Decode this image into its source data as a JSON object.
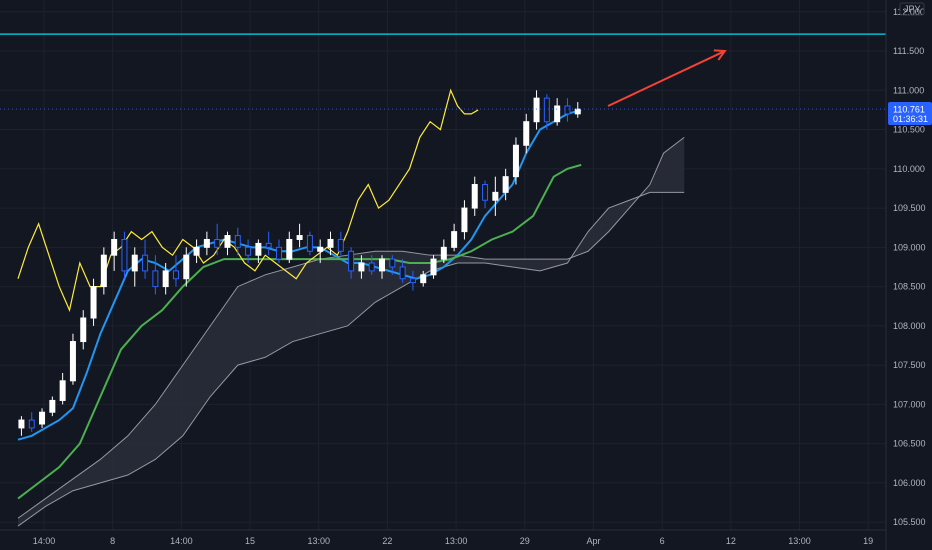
{
  "chart_data": {
    "type": "candlestick",
    "currency_label": "JPY",
    "y_ticks": [
      "112.000",
      "111.500",
      "111.000",
      "110.500",
      "110.000",
      "109.500",
      "109.000",
      "108.500",
      "108.000",
      "107.500",
      "107.000",
      "106.500",
      "106.000",
      "105.500"
    ],
    "ylim": [
      105.4,
      112.15
    ],
    "x_ticks": [
      {
        "label": "14:00",
        "x": 0
      },
      {
        "label": "8",
        "x": 1
      },
      {
        "label": "14:00",
        "x": 2
      },
      {
        "label": "15",
        "x": 3
      },
      {
        "label": "13:00",
        "x": 4
      },
      {
        "label": "22",
        "x": 5
      },
      {
        "label": "13:00",
        "x": 6
      },
      {
        "label": "29",
        "x": 7
      },
      {
        "label": "Apr",
        "x": 8
      },
      {
        "label": "6",
        "x": 9
      },
      {
        "label": "12",
        "x": 10
      },
      {
        "label": "13:00",
        "x": 11
      },
      {
        "label": "19",
        "x": 12
      }
    ],
    "horizontal_line": {
      "value": 111.715,
      "label": "111.715",
      "color": "#00bcd4"
    },
    "last_price": {
      "value": 110.761,
      "label": "110.761",
      "countdown": "01:36:31",
      "color": "#2962ff"
    },
    "colors": {
      "background": "#131722",
      "candle_up": "#ffffff",
      "candle_down": "#2962ff",
      "tenkan": "#2196f3",
      "kijun": "#4caf50",
      "chikou": "#ffeb3b",
      "cloud_line": "#9598a1",
      "cloud_fill": "#2a2e39",
      "arrow": "#f44336"
    },
    "series": [
      {
        "name": "tenkan",
        "x": [
          0,
          0.2,
          0.4,
          0.6,
          0.8,
          1,
          1.2,
          1.4,
          1.6,
          1.8,
          2,
          2.2,
          2.4,
          2.6,
          2.8,
          3,
          3.2,
          3.4,
          3.6,
          3.8,
          4,
          4.2,
          4.4,
          4.6,
          4.8,
          5,
          5.2,
          5.4,
          5.6,
          5.8,
          6,
          6.2,
          6.4,
          6.6,
          6.8,
          7,
          7.2,
          7.4,
          7.6,
          7.8,
          8,
          8.2
        ],
        "y": [
          106.55,
          106.6,
          106.7,
          106.8,
          106.95,
          107.4,
          107.9,
          108.3,
          108.7,
          108.85,
          108.8,
          108.7,
          108.85,
          109.0,
          109.05,
          109.1,
          109.05,
          109.0,
          109.0,
          108.95,
          108.95,
          109.0,
          109.0,
          108.9,
          108.8,
          108.8,
          108.75,
          108.7,
          108.65,
          108.6,
          108.65,
          108.75,
          108.9,
          109.1,
          109.4,
          109.6,
          109.8,
          110.2,
          110.5,
          110.6,
          110.7,
          110.75
        ]
      },
      {
        "name": "kijun",
        "x": [
          0,
          0.3,
          0.6,
          0.9,
          1.2,
          1.5,
          1.8,
          2.1,
          2.4,
          2.7,
          3,
          3.3,
          3.6,
          3.9,
          4.2,
          4.5,
          4.8,
          5.1,
          5.4,
          5.7,
          6,
          6.3,
          6.6,
          6.9,
          7.2,
          7.5,
          7.8,
          8,
          8.2
        ],
        "y": [
          105.8,
          106.0,
          106.2,
          106.5,
          107.1,
          107.7,
          108.0,
          108.2,
          108.5,
          108.75,
          108.85,
          108.85,
          108.85,
          108.85,
          108.85,
          108.85,
          108.85,
          108.85,
          108.85,
          108.8,
          108.8,
          108.85,
          108.95,
          109.1,
          109.2,
          109.4,
          109.9,
          110.0,
          110.05
        ]
      },
      {
        "name": "chikou",
        "x": [
          0,
          0.15,
          0.3,
          0.45,
          0.6,
          0.75,
          0.9,
          1.05,
          1.2,
          1.35,
          1.5,
          1.65,
          1.8,
          1.95,
          2.1,
          2.25,
          2.4,
          2.55,
          2.7,
          2.85,
          3,
          3.15,
          3.3,
          3.45,
          3.6,
          3.75,
          3.9,
          4.05,
          4.2,
          4.35,
          4.5,
          4.65,
          4.8,
          4.95,
          5.1,
          5.25,
          5.4,
          5.55,
          5.7,
          5.85,
          6,
          6.15,
          6.3,
          6.4,
          6.5,
          6.6,
          6.7
        ],
        "y": [
          108.6,
          109.0,
          109.3,
          108.9,
          108.5,
          108.2,
          108.8,
          108.5,
          108.5,
          108.9,
          109.0,
          109.2,
          109.1,
          109.2,
          109.0,
          108.9,
          109.1,
          109.0,
          108.8,
          108.9,
          109.1,
          109.0,
          108.8,
          108.7,
          108.9,
          108.8,
          108.7,
          108.6,
          108.8,
          108.9,
          109.0,
          108.9,
          109.2,
          109.6,
          109.8,
          109.5,
          109.6,
          109.8,
          110.0,
          110.4,
          110.6,
          110.5,
          111.0,
          110.8,
          110.7,
          110.7,
          110.75
        ]
      }
    ],
    "cloud": {
      "x": [
        0,
        0.4,
        0.8,
        1.2,
        1.6,
        2.0,
        2.4,
        2.8,
        3.2,
        3.6,
        4.0,
        4.4,
        4.8,
        5.2,
        5.6,
        6.0,
        6.4,
        6.8,
        7.2,
        7.6,
        8.0,
        8.3,
        8.6,
        8.9,
        9.2,
        9.4,
        9.7
      ],
      "y1": [
        105.55,
        105.8,
        106.05,
        106.3,
        106.6,
        107.0,
        107.5,
        108.0,
        108.5,
        108.65,
        108.75,
        108.85,
        108.9,
        108.95,
        108.95,
        108.9,
        108.9,
        108.85,
        108.85,
        108.85,
        108.85,
        108.95,
        109.2,
        109.5,
        109.8,
        110.2,
        110.4
      ],
      "y2": [
        105.45,
        105.7,
        105.9,
        106.0,
        106.1,
        106.3,
        106.6,
        107.1,
        107.5,
        107.6,
        107.8,
        107.9,
        108.0,
        108.3,
        108.5,
        108.7,
        108.8,
        108.8,
        108.75,
        108.7,
        108.8,
        109.2,
        109.5,
        109.6,
        109.7,
        109.7,
        109.7
      ]
    },
    "candles": [
      {
        "x": 0.05,
        "o": 106.7,
        "h": 106.85,
        "l": 106.6,
        "c": 106.8
      },
      {
        "x": 0.2,
        "o": 106.8,
        "h": 106.9,
        "l": 106.65,
        "c": 106.7
      },
      {
        "x": 0.35,
        "o": 106.75,
        "h": 106.95,
        "l": 106.7,
        "c": 106.9
      },
      {
        "x": 0.5,
        "o": 106.9,
        "h": 107.1,
        "l": 106.85,
        "c": 107.05
      },
      {
        "x": 0.65,
        "o": 107.05,
        "h": 107.4,
        "l": 107.0,
        "c": 107.3
      },
      {
        "x": 0.8,
        "o": 107.3,
        "h": 107.9,
        "l": 107.25,
        "c": 107.8
      },
      {
        "x": 0.95,
        "o": 107.8,
        "h": 108.2,
        "l": 107.7,
        "c": 108.1
      },
      {
        "x": 1.1,
        "o": 108.1,
        "h": 108.6,
        "l": 108.0,
        "c": 108.5
      },
      {
        "x": 1.25,
        "o": 108.5,
        "h": 109.0,
        "l": 108.4,
        "c": 108.9
      },
      {
        "x": 1.4,
        "o": 108.9,
        "h": 109.2,
        "l": 108.7,
        "c": 109.1
      },
      {
        "x": 1.55,
        "o": 109.1,
        "h": 109.2,
        "l": 108.6,
        "c": 108.7
      },
      {
        "x": 1.7,
        "o": 108.7,
        "h": 109.0,
        "l": 108.5,
        "c": 108.9
      },
      {
        "x": 1.85,
        "o": 108.9,
        "h": 109.1,
        "l": 108.6,
        "c": 108.7
      },
      {
        "x": 2.0,
        "o": 108.7,
        "h": 108.9,
        "l": 108.4,
        "c": 108.5
      },
      {
        "x": 2.15,
        "o": 108.5,
        "h": 108.8,
        "l": 108.4,
        "c": 108.7
      },
      {
        "x": 2.3,
        "o": 108.7,
        "h": 108.9,
        "l": 108.5,
        "c": 108.6
      },
      {
        "x": 2.45,
        "o": 108.6,
        "h": 109.0,
        "l": 108.5,
        "c": 108.9
      },
      {
        "x": 2.6,
        "o": 108.9,
        "h": 109.1,
        "l": 108.8,
        "c": 109.0
      },
      {
        "x": 2.75,
        "o": 109.0,
        "h": 109.2,
        "l": 108.9,
        "c": 109.1
      },
      {
        "x": 2.9,
        "o": 109.1,
        "h": 109.3,
        "l": 108.9,
        "c": 109.0
      },
      {
        "x": 3.05,
        "o": 109.0,
        "h": 109.2,
        "l": 108.9,
        "c": 109.15
      },
      {
        "x": 3.2,
        "o": 109.15,
        "h": 109.25,
        "l": 108.9,
        "c": 109.0
      },
      {
        "x": 3.35,
        "o": 109.0,
        "h": 109.1,
        "l": 108.8,
        "c": 108.9
      },
      {
        "x": 3.5,
        "o": 108.9,
        "h": 109.1,
        "l": 108.8,
        "c": 109.05
      },
      {
        "x": 3.65,
        "o": 109.05,
        "h": 109.2,
        "l": 108.9,
        "c": 109.0
      },
      {
        "x": 3.8,
        "o": 109.0,
        "h": 109.1,
        "l": 108.8,
        "c": 108.85
      },
      {
        "x": 3.95,
        "o": 108.85,
        "h": 109.2,
        "l": 108.8,
        "c": 109.1
      },
      {
        "x": 4.1,
        "o": 109.1,
        "h": 109.3,
        "l": 109.0,
        "c": 109.15
      },
      {
        "x": 4.25,
        "o": 109.15,
        "h": 109.2,
        "l": 108.9,
        "c": 108.95
      },
      {
        "x": 4.4,
        "o": 108.95,
        "h": 109.1,
        "l": 108.8,
        "c": 109.0
      },
      {
        "x": 4.55,
        "o": 109.0,
        "h": 109.2,
        "l": 108.9,
        "c": 109.1
      },
      {
        "x": 4.7,
        "o": 109.1,
        "h": 109.2,
        "l": 108.9,
        "c": 108.95
      },
      {
        "x": 4.85,
        "o": 108.95,
        "h": 109.0,
        "l": 108.6,
        "c": 108.7
      },
      {
        "x": 5.0,
        "o": 108.7,
        "h": 108.9,
        "l": 108.6,
        "c": 108.8
      },
      {
        "x": 5.15,
        "o": 108.8,
        "h": 108.9,
        "l": 108.65,
        "c": 108.7
      },
      {
        "x": 5.3,
        "o": 108.7,
        "h": 108.9,
        "l": 108.6,
        "c": 108.85
      },
      {
        "x": 5.45,
        "o": 108.85,
        "h": 108.9,
        "l": 108.65,
        "c": 108.75
      },
      {
        "x": 5.6,
        "o": 108.75,
        "h": 108.85,
        "l": 108.55,
        "c": 108.6
      },
      {
        "x": 5.75,
        "o": 108.6,
        "h": 108.7,
        "l": 108.45,
        "c": 108.55
      },
      {
        "x": 5.9,
        "o": 108.55,
        "h": 108.7,
        "l": 108.5,
        "c": 108.65
      },
      {
        "x": 6.05,
        "o": 108.65,
        "h": 108.9,
        "l": 108.6,
        "c": 108.85
      },
      {
        "x": 6.2,
        "o": 108.85,
        "h": 109.1,
        "l": 108.8,
        "c": 109.0
      },
      {
        "x": 6.35,
        "o": 109.0,
        "h": 109.3,
        "l": 108.95,
        "c": 109.2
      },
      {
        "x": 6.5,
        "o": 109.2,
        "h": 109.6,
        "l": 109.1,
        "c": 109.5
      },
      {
        "x": 6.65,
        "o": 109.5,
        "h": 109.9,
        "l": 109.4,
        "c": 109.8
      },
      {
        "x": 6.8,
        "o": 109.8,
        "h": 109.85,
        "l": 109.5,
        "c": 109.6
      },
      {
        "x": 6.95,
        "o": 109.6,
        "h": 109.9,
        "l": 109.4,
        "c": 109.7
      },
      {
        "x": 7.1,
        "o": 109.7,
        "h": 110.0,
        "l": 109.6,
        "c": 109.9
      },
      {
        "x": 7.25,
        "o": 109.9,
        "h": 110.4,
        "l": 109.8,
        "c": 110.3
      },
      {
        "x": 7.4,
        "o": 110.3,
        "h": 110.7,
        "l": 110.2,
        "c": 110.6
      },
      {
        "x": 7.55,
        "o": 110.6,
        "h": 111.0,
        "l": 110.5,
        "c": 110.9
      },
      {
        "x": 7.7,
        "o": 110.9,
        "h": 110.95,
        "l": 110.5,
        "c": 110.6
      },
      {
        "x": 7.85,
        "o": 110.6,
        "h": 110.9,
        "l": 110.55,
        "c": 110.8
      },
      {
        "x": 8.0,
        "o": 110.8,
        "h": 110.9,
        "l": 110.6,
        "c": 110.7
      },
      {
        "x": 8.15,
        "o": 110.7,
        "h": 110.85,
        "l": 110.65,
        "c": 110.76
      }
    ],
    "arrow": {
      "x1": 8.3,
      "y1": 110.8,
      "x2": 10.0,
      "y2": 111.5
    }
  }
}
